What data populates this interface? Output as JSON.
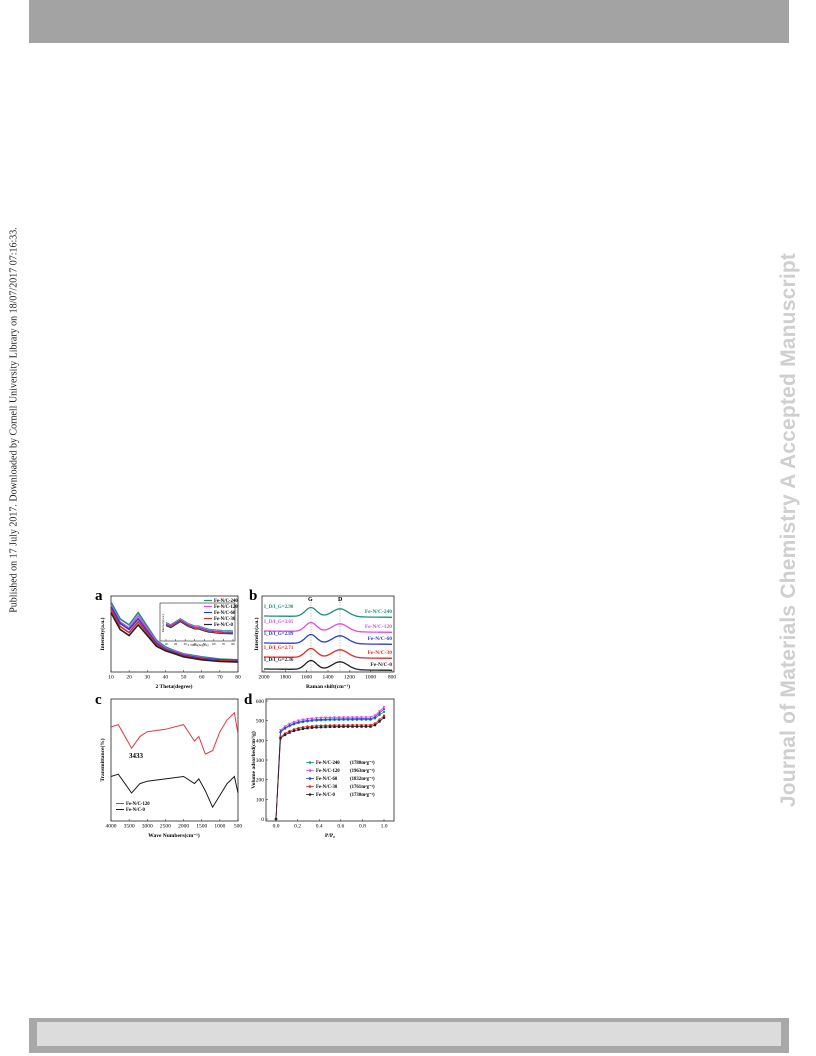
{
  "side_note": "Published on 17 July 2017. Downloaded by Cornell University Library on 18/07/2017 07:16:33.",
  "watermark": "Journal of Materials Chemistry A Accepted Manuscript",
  "colors": {
    "s240": "#1f8f7e",
    "s120": "#e04ce0",
    "s60": "#2a3dd4",
    "s30": "#e02a2a",
    "s0": "#222222",
    "red": "#e03b3b",
    "black": "#1a1a1a"
  },
  "panels": {
    "a": {
      "letter": "a",
      "xlabel": "2 Theta(degree)",
      "ylabel": "Intensity(a.u.)",
      "xticks": [
        "10",
        "20",
        "30",
        "40",
        "50",
        "60",
        "70",
        "80"
      ],
      "legend": [
        "Fe-N/C-240",
        "Fe-N/C-120",
        "Fe-N/C-60",
        "Fe-N/C-30",
        "Fe-N/C-0"
      ],
      "inset_ylabel": "Intensity(a.u.)",
      "inset_xlabel": "2 Theta(degree)",
      "inset_xticks": [
        "10",
        "20",
        "30",
        "40",
        "50",
        "60",
        "70",
        "80"
      ]
    },
    "b": {
      "letter": "b",
      "xlabel": "Raman shift(cm⁻¹)",
      "ylabel": "Intensity(a.u.)",
      "xticks": [
        "2000",
        "1800",
        "1600",
        "1400",
        "1200",
        "1000",
        "800"
      ],
      "peaks": [
        "G",
        "D"
      ],
      "ratios": [
        "I_D/I_G=2.90",
        "I_D/I_G=3.05",
        "I_D/I_G=2.89",
        "I_D/I_G=2.71",
        "I_D/I_G=2.36"
      ],
      "labels": [
        "Fe-N/C-240",
        "Fe-N/C-120",
        "Fe-N/C-60",
        "Fe-N/C-30",
        "Fe-N/C-0"
      ]
    },
    "c": {
      "letter": "c",
      "xlabel": "Wave Numbers(cm⁻¹)",
      "ylabel": "Transmittance(%)",
      "xticks": [
        "4000",
        "3500",
        "3000",
        "2500",
        "2000",
        "1500",
        "1000",
        "500"
      ],
      "annotation": "3433",
      "legend": [
        "Fe-N/C-120",
        "Fe-N/C-0"
      ]
    },
    "d": {
      "letter": "d",
      "xlabel": "P/P₀",
      "ylabel": "Volume adsorbed(cm³/g)",
      "xticks": [
        "0.0",
        "0.2",
        "0.4",
        "0.6",
        "0.8",
        "1.0"
      ],
      "yticks": [
        "0",
        "100",
        "200",
        "300",
        "400",
        "500",
        "600"
      ],
      "legend": [
        {
          "name": "Fe-N/C-240",
          "area": "(1780m²g⁻¹)"
        },
        {
          "name": "Fe-N/C-120",
          "area": "(1963m²g⁻¹)"
        },
        {
          "name": "Fe-N/C-60",
          "area": "(1832m²g⁻¹)"
        },
        {
          "name": "Fe-N/C-30",
          "area": "(1761m²g⁻¹)"
        },
        {
          "name": "Fe-N/C-0",
          "area": "(1730m²g⁻¹)"
        }
      ]
    }
  },
  "chart_data": [
    {
      "type": "line",
      "panel": "a",
      "xlabel": "2 Theta(degree)",
      "ylabel": "Intensity(a.u.)",
      "xlim": [
        10,
        80
      ],
      "series": [
        {
          "name": "Fe-N/C-240",
          "x": [
            10,
            15,
            20,
            25,
            30,
            35,
            40,
            45,
            50,
            60,
            70,
            80
          ],
          "y": [
            92,
            70,
            62,
            78,
            60,
            42,
            33,
            28,
            24,
            20,
            17,
            16
          ]
        },
        {
          "name": "Fe-N/C-120",
          "x": [
            10,
            15,
            20,
            25,
            30,
            35,
            40,
            45,
            50,
            60,
            70,
            80
          ],
          "y": [
            88,
            66,
            58,
            74,
            57,
            40,
            31,
            27,
            23,
            19,
            16,
            15
          ]
        },
        {
          "name": "Fe-N/C-60",
          "x": [
            10,
            15,
            20,
            25,
            30,
            35,
            40,
            45,
            50,
            60,
            70,
            80
          ],
          "y": [
            86,
            64,
            56,
            70,
            54,
            38,
            30,
            26,
            22,
            18,
            16,
            15
          ]
        },
        {
          "name": "Fe-N/C-30",
          "x": [
            10,
            15,
            20,
            25,
            30,
            35,
            40,
            45,
            50,
            60,
            70,
            80
          ],
          "y": [
            82,
            60,
            52,
            66,
            51,
            36,
            29,
            25,
            21,
            17,
            15,
            14
          ]
        },
        {
          "name": "Fe-N/C-0",
          "x": [
            10,
            15,
            20,
            25,
            30,
            35,
            40,
            45,
            50,
            60,
            70,
            80
          ],
          "y": [
            78,
            56,
            48,
            62,
            48,
            34,
            28,
            24,
            20,
            16,
            14,
            13
          ]
        }
      ]
    },
    {
      "type": "line",
      "panel": "b",
      "xlabel": "Raman shift(cm⁻¹)",
      "ylabel": "Intensity(a.u.)",
      "xlim": [
        2000,
        800
      ],
      "series": [
        {
          "name": "Fe-N/C-240",
          "ratio": 2.9
        },
        {
          "name": "Fe-N/C-120",
          "ratio": 3.05
        },
        {
          "name": "Fe-N/C-60",
          "ratio": 2.89
        },
        {
          "name": "Fe-N/C-30",
          "ratio": 2.71
        },
        {
          "name": "Fe-N/C-0",
          "ratio": 2.36
        }
      ]
    },
    {
      "type": "line",
      "panel": "c",
      "xlabel": "Wave Numbers(cm⁻¹)",
      "ylabel": "Transmittance(%)",
      "xlim": [
        4000,
        500
      ],
      "series": [
        {
          "name": "Fe-N/C-120",
          "x": [
            4000,
            3800,
            3433,
            3200,
            3000,
            2500,
            2000,
            1700,
            1580,
            1400,
            1200,
            1000,
            800,
            600,
            500
          ],
          "y": [
            78,
            80,
            60,
            70,
            74,
            76,
            80,
            66,
            70,
            55,
            58,
            74,
            84,
            90,
            72
          ]
        },
        {
          "name": "Fe-N/C-0",
          "x": [
            4000,
            3800,
            3433,
            3200,
            3000,
            2500,
            2000,
            1700,
            1580,
            1400,
            1200,
            1000,
            800,
            600,
            500
          ],
          "y": [
            36,
            38,
            22,
            30,
            32,
            34,
            36,
            30,
            34,
            24,
            10,
            20,
            30,
            36,
            22
          ]
        }
      ]
    },
    {
      "type": "scatter",
      "panel": "d",
      "xlabel": "P/P₀",
      "ylabel": "Volume adsorbed(cm³/g)",
      "xlim": [
        0,
        1
      ],
      "ylim": [
        0,
        600
      ],
      "series": [
        {
          "name": "Fe-N/C-240",
          "plateau": 505,
          "end": 545
        },
        {
          "name": "Fe-N/C-120",
          "plateau": 518,
          "end": 570
        },
        {
          "name": "Fe-N/C-60",
          "plateau": 510,
          "end": 560
        },
        {
          "name": "Fe-N/C-30",
          "plateau": 478,
          "end": 525
        },
        {
          "name": "Fe-N/C-0",
          "plateau": 470,
          "end": 515
        }
      ]
    }
  ]
}
